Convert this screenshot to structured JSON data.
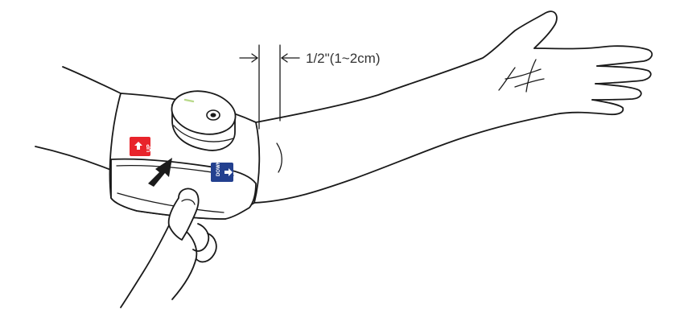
{
  "diagram": {
    "measurement_label": "1/2\"(1~2cm)",
    "up_tab": {
      "label": "UP",
      "color": "#e8242b",
      "icon": "up-arrow-icon"
    },
    "down_tab": {
      "label": "DOWN",
      "color": "#23408f",
      "icon": "down-arrow-icon"
    },
    "push_arrow_icon": "push-arrow-icon",
    "device_indicator_color": "#b8d98a"
  }
}
